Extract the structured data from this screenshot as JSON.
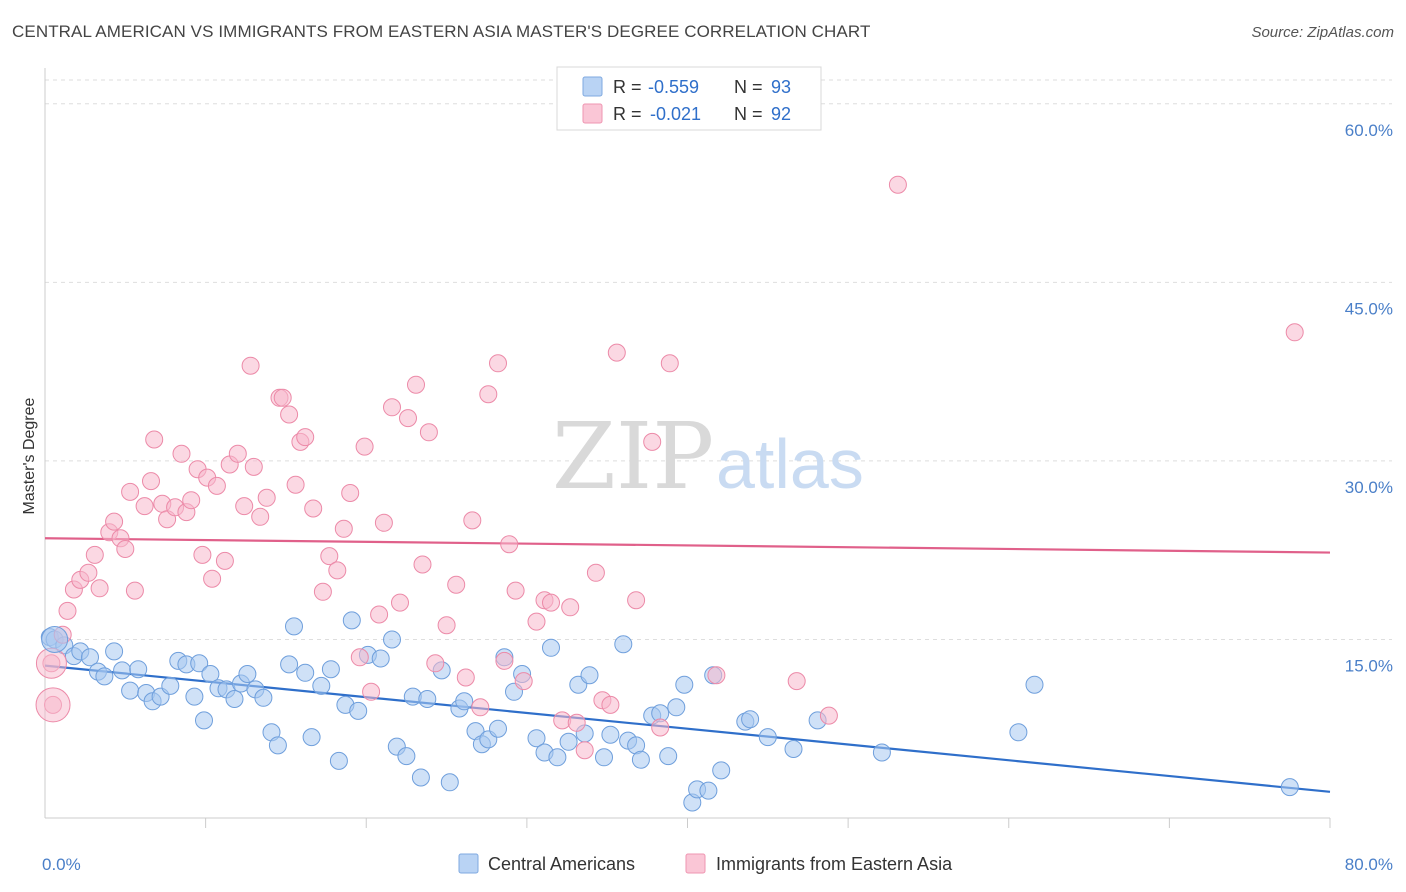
{
  "header": {
    "title": "CENTRAL AMERICAN VS IMMIGRANTS FROM EASTERN ASIA MASTER'S DEGREE CORRELATION CHART",
    "source": "Source: ZipAtlas.com"
  },
  "watermark": {
    "zip": "ZIP",
    "atlas": "atlas"
  },
  "legend_top": {
    "r_label": "R =",
    "n_label": "N =",
    "rows": [
      {
        "r": "-0.559",
        "n": "93",
        "color": "#a8c8f0"
      },
      {
        "r": "-0.021",
        "n": "92",
        "color": "#f8b8cc"
      }
    ]
  },
  "chart_data": {
    "type": "scatter",
    "title": "CENTRAL AMERICAN VS IMMIGRANTS FROM EASTERN ASIA MASTER'S DEGREE CORRELATION CHART",
    "ylabel": "Master's Degree",
    "xlim": [
      0,
      80
    ],
    "ylim": [
      0,
      62
    ],
    "x_tick_labels": [
      "0.0%",
      "80.0%"
    ],
    "y_ticks": [
      15,
      30,
      45,
      60
    ],
    "y_tick_labels": [
      "15.0%",
      "30.0%",
      "45.0%",
      "60.0%"
    ],
    "grid": true,
    "legend_placement": "top-center",
    "series": [
      {
        "name": "Central Americans",
        "color": "#a8c8f0",
        "stroke": "#6f9fdc",
        "trend": [
          [
            0,
            12.8
          ],
          [
            80,
            2.2
          ]
        ],
        "trend_color": "#2f6fca",
        "points": [
          [
            0.3,
            15.2
          ],
          [
            0.6,
            15.0
          ],
          [
            1.2,
            14.5
          ],
          [
            1.8,
            13.6
          ],
          [
            2.2,
            14.0
          ],
          [
            2.8,
            13.5
          ],
          [
            3.3,
            12.3
          ],
          [
            3.7,
            11.9
          ],
          [
            4.3,
            14.0
          ],
          [
            4.8,
            12.4
          ],
          [
            5.3,
            10.7
          ],
          [
            5.8,
            12.5
          ],
          [
            6.3,
            10.5
          ],
          [
            6.7,
            9.8
          ],
          [
            7.2,
            10.2
          ],
          [
            7.8,
            11.1
          ],
          [
            8.3,
            13.2
          ],
          [
            8.8,
            12.9
          ],
          [
            9.3,
            10.2
          ],
          [
            9.6,
            13.0
          ],
          [
            9.9,
            8.2
          ],
          [
            10.3,
            12.1
          ],
          [
            10.8,
            10.9
          ],
          [
            11.3,
            10.8
          ],
          [
            11.8,
            10.0
          ],
          [
            12.2,
            11.3
          ],
          [
            12.6,
            12.1
          ],
          [
            13.1,
            10.8
          ],
          [
            13.6,
            10.1
          ],
          [
            14.1,
            7.2
          ],
          [
            14.5,
            6.1
          ],
          [
            15.2,
            12.9
          ],
          [
            15.5,
            16.1
          ],
          [
            16.2,
            12.2
          ],
          [
            16.6,
            6.8
          ],
          [
            17.2,
            11.1
          ],
          [
            17.8,
            12.5
          ],
          [
            18.3,
            4.8
          ],
          [
            18.7,
            9.5
          ],
          [
            19.1,
            16.6
          ],
          [
            19.5,
            9.0
          ],
          [
            20.1,
            13.7
          ],
          [
            20.9,
            13.4
          ],
          [
            21.6,
            15.0
          ],
          [
            21.9,
            6.0
          ],
          [
            22.5,
            5.2
          ],
          [
            22.9,
            10.2
          ],
          [
            23.4,
            3.4
          ],
          [
            23.8,
            10.0
          ],
          [
            24.7,
            12.4
          ],
          [
            25.2,
            3.0
          ],
          [
            25.8,
            9.2
          ],
          [
            26.1,
            9.8
          ],
          [
            26.8,
            7.3
          ],
          [
            27.2,
            6.2
          ],
          [
            27.6,
            6.6
          ],
          [
            28.2,
            7.5
          ],
          [
            28.6,
            13.5
          ],
          [
            29.2,
            10.6
          ],
          [
            29.7,
            12.1
          ],
          [
            30.6,
            6.7
          ],
          [
            31.1,
            5.5
          ],
          [
            31.5,
            14.3
          ],
          [
            31.9,
            5.1
          ],
          [
            32.6,
            6.4
          ],
          [
            33.2,
            11.2
          ],
          [
            33.6,
            7.1
          ],
          [
            33.9,
            12.0
          ],
          [
            34.8,
            5.1
          ],
          [
            35.2,
            7.0
          ],
          [
            36.0,
            14.6
          ],
          [
            36.3,
            6.5
          ],
          [
            36.8,
            6.1
          ],
          [
            37.1,
            4.9
          ],
          [
            37.8,
            8.6
          ],
          [
            38.3,
            8.8
          ],
          [
            38.8,
            5.2
          ],
          [
            39.3,
            9.3
          ],
          [
            39.8,
            11.2
          ],
          [
            40.3,
            1.3
          ],
          [
            40.6,
            2.4
          ],
          [
            41.3,
            2.3
          ],
          [
            41.6,
            12.0
          ],
          [
            42.1,
            4.0
          ],
          [
            43.6,
            8.1
          ],
          [
            43.9,
            8.3
          ],
          [
            45.0,
            6.8
          ],
          [
            46.6,
            5.8
          ],
          [
            48.1,
            8.2
          ],
          [
            52.1,
            5.5
          ],
          [
            60.6,
            7.2
          ],
          [
            61.6,
            11.2
          ],
          [
            77.5,
            2.6
          ]
        ]
      },
      {
        "name": "Immigrants from Eastern Asia",
        "color": "#f8b8cc",
        "stroke": "#ec8aa8",
        "trend": [
          [
            0,
            23.5
          ],
          [
            80,
            22.3
          ]
        ],
        "trend_color": "#e0608a",
        "points": [
          [
            0.4,
            13.0
          ],
          [
            0.5,
            9.5
          ],
          [
            1.1,
            15.4
          ],
          [
            1.4,
            17.4
          ],
          [
            1.8,
            19.2
          ],
          [
            2.2,
            20.0
          ],
          [
            2.7,
            20.6
          ],
          [
            3.1,
            22.1
          ],
          [
            3.4,
            19.3
          ],
          [
            4.0,
            24.0
          ],
          [
            4.3,
            24.9
          ],
          [
            4.7,
            23.5
          ],
          [
            5.0,
            22.6
          ],
          [
            5.3,
            27.4
          ],
          [
            5.6,
            19.1
          ],
          [
            6.2,
            26.2
          ],
          [
            6.6,
            28.3
          ],
          [
            6.8,
            31.8
          ],
          [
            7.3,
            26.4
          ],
          [
            7.6,
            25.1
          ],
          [
            8.1,
            26.1
          ],
          [
            8.5,
            30.6
          ],
          [
            8.8,
            25.7
          ],
          [
            9.1,
            26.7
          ],
          [
            9.5,
            29.3
          ],
          [
            9.8,
            22.1
          ],
          [
            10.1,
            28.6
          ],
          [
            10.4,
            20.1
          ],
          [
            10.7,
            27.9
          ],
          [
            11.2,
            21.6
          ],
          [
            11.5,
            29.7
          ],
          [
            12.0,
            30.6
          ],
          [
            12.4,
            26.2
          ],
          [
            12.8,
            38.0
          ],
          [
            13.0,
            29.5
          ],
          [
            13.4,
            25.3
          ],
          [
            13.8,
            26.9
          ],
          [
            14.6,
            35.3
          ],
          [
            14.8,
            35.3
          ],
          [
            15.2,
            33.9
          ],
          [
            15.6,
            28.0
          ],
          [
            15.9,
            31.6
          ],
          [
            16.2,
            32.0
          ],
          [
            16.7,
            26.0
          ],
          [
            17.3,
            19.0
          ],
          [
            17.7,
            22.0
          ],
          [
            18.2,
            20.8
          ],
          [
            18.6,
            24.3
          ],
          [
            19.0,
            27.3
          ],
          [
            19.6,
            13.5
          ],
          [
            19.9,
            31.2
          ],
          [
            20.3,
            10.6
          ],
          [
            20.8,
            17.1
          ],
          [
            21.1,
            24.8
          ],
          [
            21.6,
            34.5
          ],
          [
            22.1,
            18.1
          ],
          [
            22.6,
            33.6
          ],
          [
            23.1,
            36.4
          ],
          [
            23.5,
            21.3
          ],
          [
            23.9,
            32.4
          ],
          [
            24.3,
            13.0
          ],
          [
            25.0,
            16.2
          ],
          [
            25.6,
            19.6
          ],
          [
            26.2,
            11.8
          ],
          [
            26.6,
            25.0
          ],
          [
            27.1,
            9.3
          ],
          [
            27.6,
            35.6
          ],
          [
            28.2,
            38.2
          ],
          [
            28.6,
            13.2
          ],
          [
            28.9,
            23.0
          ],
          [
            29.3,
            19.1
          ],
          [
            29.8,
            11.5
          ],
          [
            30.6,
            16.5
          ],
          [
            31.1,
            18.3
          ],
          [
            31.5,
            18.1
          ],
          [
            32.2,
            8.2
          ],
          [
            32.7,
            17.7
          ],
          [
            33.1,
            8.0
          ],
          [
            33.6,
            5.7
          ],
          [
            34.3,
            20.6
          ],
          [
            34.7,
            9.9
          ],
          [
            35.2,
            9.5
          ],
          [
            35.6,
            39.1
          ],
          [
            36.8,
            18.3
          ],
          [
            37.8,
            31.6
          ],
          [
            38.3,
            7.6
          ],
          [
            38.9,
            38.2
          ],
          [
            41.8,
            12.0
          ],
          [
            46.8,
            11.5
          ],
          [
            48.8,
            8.6
          ],
          [
            53.1,
            53.2
          ],
          [
            77.8,
            40.8
          ]
        ]
      }
    ]
  }
}
